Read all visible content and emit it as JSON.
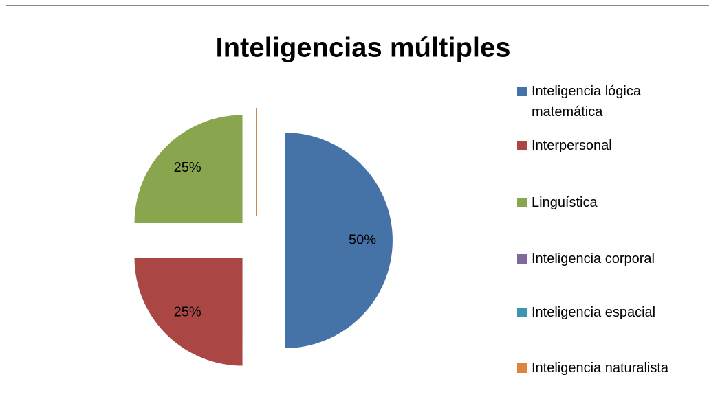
{
  "chart_data": {
    "type": "pie",
    "title": "Inteligencias múltiples",
    "categories": [
      "Inteligencia lógica matemática",
      "Interpersonal",
      "Linguística",
      "Inteligencia corporal",
      "Inteligencia espacial",
      "Inteligencia naturalista"
    ],
    "values": [
      50,
      25,
      25,
      0,
      0,
      0
    ],
    "value_labels": [
      "50%",
      "25%",
      "25%",
      null,
      null,
      null
    ],
    "colors": [
      "#4572A7",
      "#AA4643",
      "#89A54E",
      "#80699B",
      "#3D96AE",
      "#DB843D"
    ],
    "legend": "right"
  }
}
